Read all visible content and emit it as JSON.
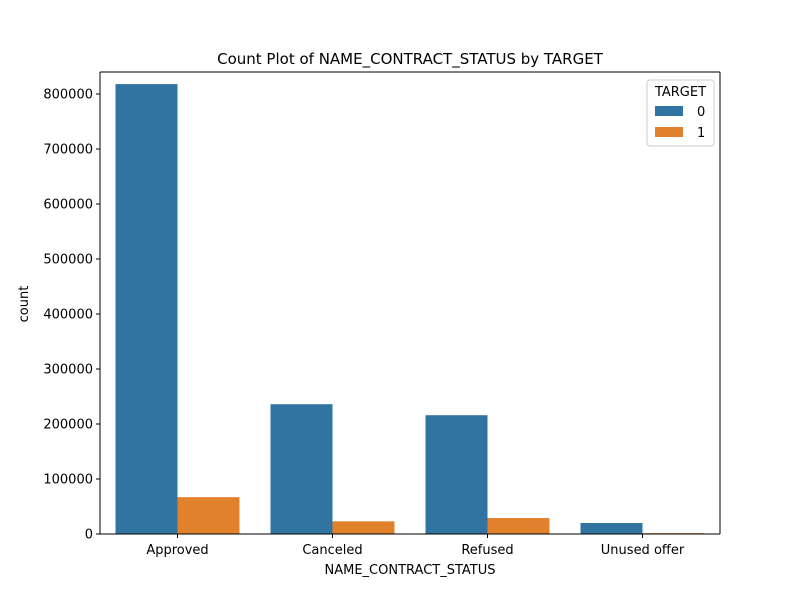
{
  "chart_data": {
    "type": "bar",
    "title": "Count Plot of NAME_CONTRACT_STATUS by TARGET",
    "xlabel": "NAME_CONTRACT_STATUS",
    "ylabel": "count",
    "categories": [
      "Approved",
      "Canceled",
      "Refused",
      "Unused offer"
    ],
    "series": [
      {
        "name": "0",
        "color": "#3274a1",
        "values": [
          818000,
          236000,
          216000,
          20000
        ]
      },
      {
        "name": "1",
        "color": "#e1812c",
        "values": [
          67000,
          23000,
          29000,
          1500
        ]
      }
    ],
    "ylim": [
      0,
      840000
    ],
    "yticks": [
      0,
      100000,
      200000,
      300000,
      400000,
      500000,
      600000,
      700000,
      800000
    ],
    "grid": false,
    "legend": {
      "title": "TARGET",
      "placement": "top-right"
    }
  }
}
